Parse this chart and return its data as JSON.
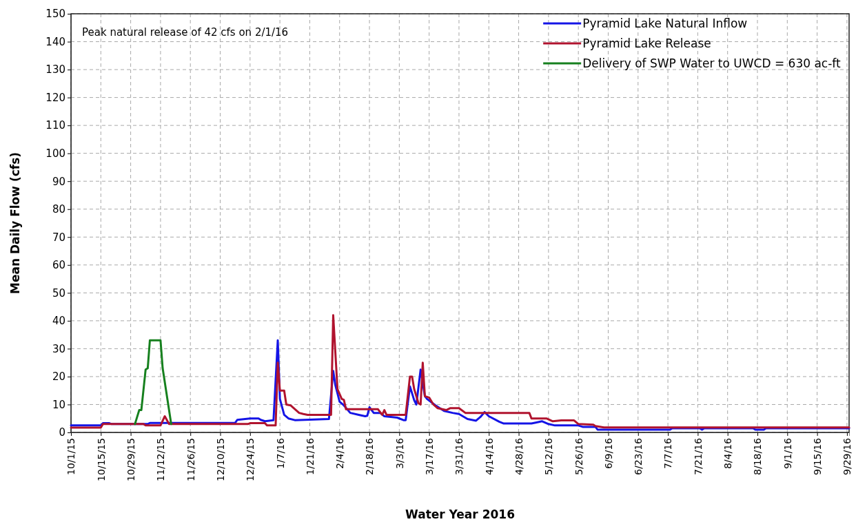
{
  "chart_data": {
    "type": "line",
    "xlabel": "Water Year 2016",
    "ylabel": "Mean Daily Flow (cfs)",
    "annotations": [
      "Peak natural release of 42 cfs on 2/1/16"
    ],
    "xlim": [
      "2015-10-01",
      "2016-09-30"
    ],
    "xticks": [
      {
        "value": "2015-10-01",
        "label": "10/1/15"
      },
      {
        "value": "2015-10-15",
        "label": "10/15/15"
      },
      {
        "value": "2015-10-29",
        "label": "10/29/15"
      },
      {
        "value": "2015-11-12",
        "label": "11/12/15"
      },
      {
        "value": "2015-11-26",
        "label": "11/26/15"
      },
      {
        "value": "2015-12-10",
        "label": "12/10/15"
      },
      {
        "value": "2015-12-24",
        "label": "12/24/15"
      },
      {
        "value": "2016-01-07",
        "label": "1/7/16"
      },
      {
        "value": "2016-01-21",
        "label": "1/21/16"
      },
      {
        "value": "2016-02-04",
        "label": "2/4/16"
      },
      {
        "value": "2016-02-18",
        "label": "2/18/16"
      },
      {
        "value": "2016-03-03",
        "label": "3/3/16"
      },
      {
        "value": "2016-03-17",
        "label": "3/17/16"
      },
      {
        "value": "2016-03-31",
        "label": "3/31/16"
      },
      {
        "value": "2016-04-14",
        "label": "4/14/16"
      },
      {
        "value": "2016-04-28",
        "label": "4/28/16"
      },
      {
        "value": "2016-05-12",
        "label": "5/12/16"
      },
      {
        "value": "2016-05-26",
        "label": "5/26/16"
      },
      {
        "value": "2016-06-09",
        "label": "6/9/16"
      },
      {
        "value": "2016-06-23",
        "label": "6/23/16"
      },
      {
        "value": "2016-07-07",
        "label": "7/7/16"
      },
      {
        "value": "2016-07-21",
        "label": "7/21/16"
      },
      {
        "value": "2016-08-04",
        "label": "8/4/16"
      },
      {
        "value": "2016-08-18",
        "label": "8/18/16"
      },
      {
        "value": "2016-09-01",
        "label": "9/1/16"
      },
      {
        "value": "2016-09-15",
        "label": "9/15/16"
      },
      {
        "value": "2016-09-29",
        "label": "9/29/16"
      }
    ],
    "ylim": [
      0,
      150
    ],
    "yticks": [
      0,
      10,
      20,
      30,
      40,
      50,
      60,
      70,
      80,
      90,
      100,
      110,
      120,
      130,
      140,
      150
    ],
    "grid": true,
    "legend": "top right",
    "line_style": "solid",
    "marker": "none",
    "series": [
      {
        "name": "Pyramid Lake Natural Inflow",
        "color": "#1414e6",
        "x": [
          "2015-10-01",
          "2015-10-15",
          "2015-10-16",
          "2015-10-19",
          "2015-10-20",
          "2015-11-06",
          "2015-11-07",
          "2015-12-17",
          "2015-12-18",
          "2015-12-24",
          "2015-12-28",
          "2015-12-29",
          "2015-12-31",
          "2016-01-04",
          "2016-01-06",
          "2016-01-07",
          "2016-01-09",
          "2016-01-11",
          "2016-01-14",
          "2016-01-30",
          "2016-02-01",
          "2016-02-02",
          "2016-02-04",
          "2016-02-06",
          "2016-02-09",
          "2016-02-13",
          "2016-02-16",
          "2016-02-17",
          "2016-02-18",
          "2016-02-20",
          "2016-02-23",
          "2016-02-25",
          "2016-03-02",
          "2016-03-05",
          "2016-03-06",
          "2016-03-08",
          "2016-03-10",
          "2016-03-11",
          "2016-03-13",
          "2016-03-15",
          "2016-03-16",
          "2016-03-20",
          "2016-03-24",
          "2016-03-28",
          "2016-03-31",
          "2016-04-04",
          "2016-04-08",
          "2016-04-10",
          "2016-04-12",
          "2016-04-14",
          "2016-04-19",
          "2016-04-21",
          "2016-05-04",
          "2016-05-06",
          "2016-05-09",
          "2016-05-12",
          "2016-05-15",
          "2016-05-26",
          "2016-05-28",
          "2016-06-03",
          "2016-06-04",
          "2016-07-08",
          "2016-07-09",
          "2016-07-22",
          "2016-07-23",
          "2016-07-24",
          "2016-08-16",
          "2016-08-17",
          "2016-08-21",
          "2016-08-22",
          "2016-09-30"
        ],
        "values": [
          2.5,
          2.5,
          3.3,
          3.3,
          3,
          3,
          3.4,
          3.4,
          4.5,
          5,
          5,
          4.5,
          4,
          4.4,
          33,
          12,
          6.3,
          5,
          4.4,
          4.8,
          22,
          17,
          11,
          9.7,
          7,
          6.3,
          5.8,
          6,
          9,
          7,
          7,
          5.8,
          5.3,
          4.4,
          4.4,
          16.5,
          11.5,
          10,
          22.5,
          13,
          12,
          9.7,
          7.7,
          7,
          6.6,
          4.8,
          4.2,
          5.5,
          7.3,
          5.8,
          3.8,
          3.2,
          3.2,
          3.5,
          4,
          3,
          2.5,
          2.5,
          2,
          2,
          1,
          1,
          1.5,
          1.5,
          1,
          1.5,
          1.5,
          1,
          1,
          1.5,
          1.5
        ]
      },
      {
        "name": "Pyramid Lake Release",
        "color": "#b0132e",
        "x": [
          "2015-10-01",
          "2015-10-15",
          "2015-10-16",
          "2015-11-04",
          "2015-11-05",
          "2015-11-12",
          "2015-11-14",
          "2015-11-16",
          "2015-12-23",
          "2015-12-24",
          "2015-12-31",
          "2016-01-01",
          "2016-01-05",
          "2016-01-06",
          "2016-01-07",
          "2016-01-09",
          "2016-01-10",
          "2016-01-12",
          "2016-01-16",
          "2016-01-18",
          "2016-01-20",
          "2016-01-31",
          "2016-02-01",
          "2016-02-03",
          "2016-02-05",
          "2016-02-06",
          "2016-02-07",
          "2016-02-22",
          "2016-02-24",
          "2016-02-25",
          "2016-02-26",
          "2016-03-06",
          "2016-03-08",
          "2016-03-09",
          "2016-03-10",
          "2016-03-12",
          "2016-03-13",
          "2016-03-14",
          "2016-03-15",
          "2016-03-17",
          "2016-03-19",
          "2016-03-21",
          "2016-03-25",
          "2016-03-27",
          "2016-03-31",
          "2016-04-03",
          "2016-05-03",
          "2016-05-04",
          "2016-05-11",
          "2016-05-14",
          "2016-05-18",
          "2016-05-24",
          "2016-05-26",
          "2016-06-02",
          "2016-06-03",
          "2016-06-07",
          "2016-09-30"
        ],
        "values": [
          1.7,
          1.7,
          3,
          3,
          2.5,
          2.5,
          5.8,
          3,
          3,
          3.3,
          3.3,
          2.5,
          2.5,
          25,
          15,
          15,
          10,
          9.7,
          7,
          6.6,
          6.3,
          6.3,
          42,
          15.5,
          12,
          11.7,
          8.3,
          8.3,
          6.3,
          8,
          6.3,
          6.3,
          20,
          20,
          15.5,
          10.5,
          10,
          25,
          13,
          12.5,
          10,
          8.7,
          8,
          8.7,
          8.7,
          7,
          7,
          5,
          5,
          4,
          4.3,
          4.3,
          3,
          2.8,
          2.3,
          1.8,
          1.8
        ]
      },
      {
        "name": "Delivery of SWP Water to UWCD = 630 ac-ft",
        "color": "#16801e",
        "x": [
          "2015-10-31",
          "2015-11-02",
          "2015-11-03",
          "2015-11-05",
          "2015-11-06",
          "2015-11-07",
          "2015-11-12",
          "2015-11-13",
          "2015-11-17"
        ],
        "values": [
          3,
          8,
          8,
          22.5,
          23,
          33,
          33,
          23,
          3
        ]
      }
    ]
  }
}
